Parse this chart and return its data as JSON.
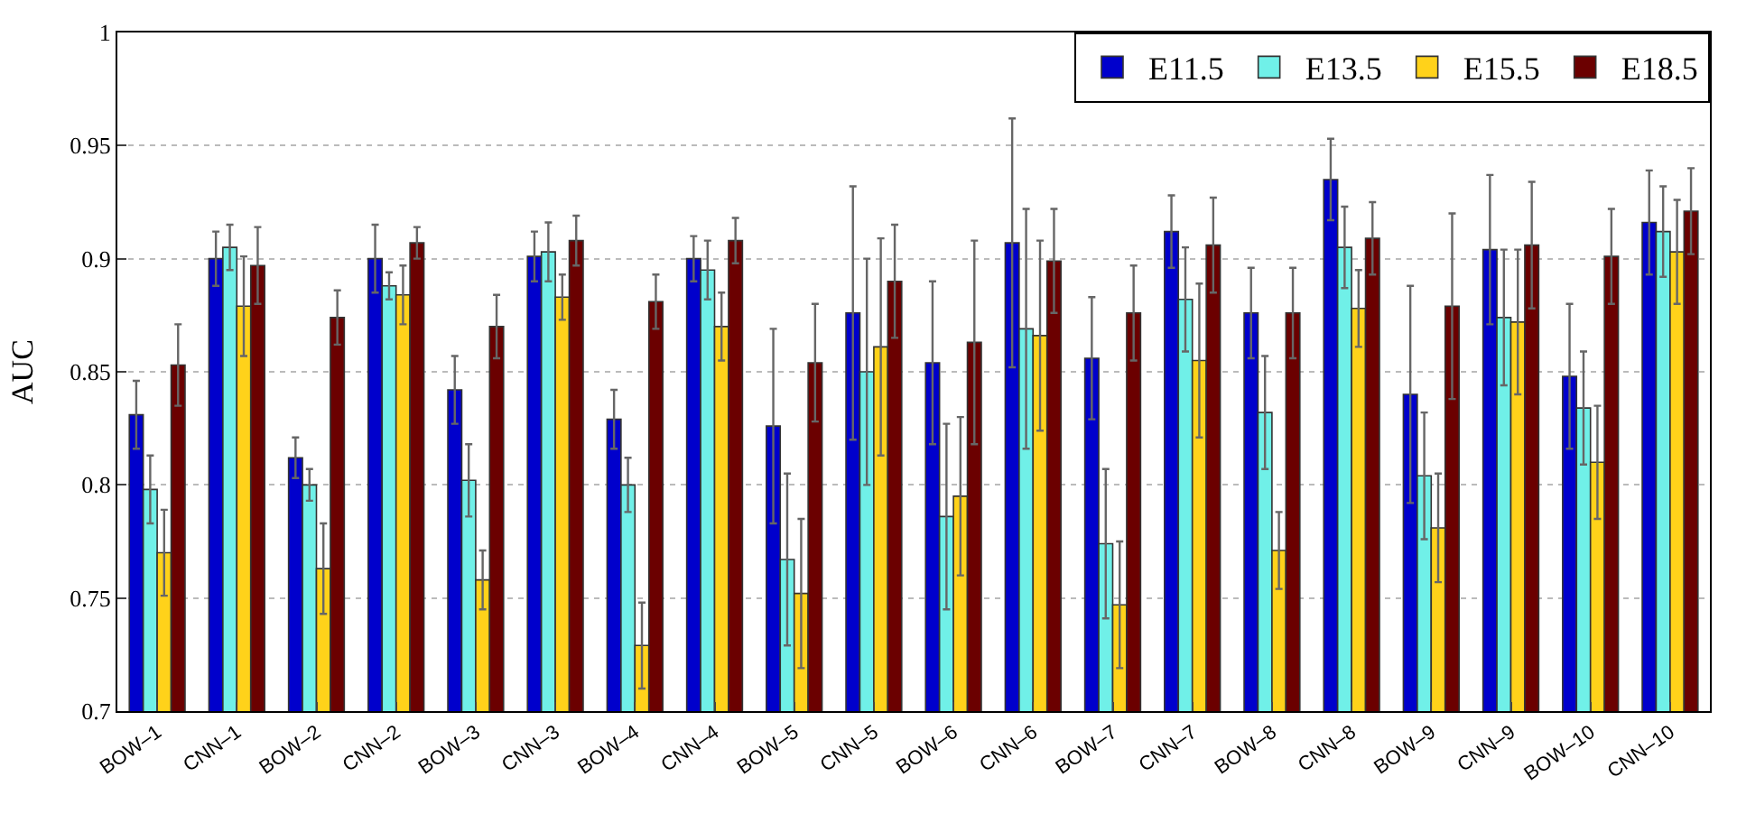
{
  "chart_data": {
    "type": "bar",
    "ylabel": "AUC",
    "categories": [
      "BOW–1",
      "CNN–1",
      "BOW–2",
      "CNN–2",
      "BOW–3",
      "CNN–3",
      "BOW–4",
      "CNN–4",
      "BOW–5",
      "CNN–5",
      "BOW–6",
      "CNN–6",
      "BOW–7",
      "CNN–7",
      "BOW–8",
      "CNN–8",
      "BOW–9",
      "CNN–9",
      "BOW–10",
      "CNN–10"
    ],
    "series": [
      {
        "name": "E11.5",
        "color": "#0000cc",
        "values": [
          0.831,
          0.9,
          0.812,
          0.9,
          0.842,
          0.901,
          0.829,
          0.9,
          0.826,
          0.876,
          0.854,
          0.907,
          0.856,
          0.912,
          0.876,
          0.935,
          0.84,
          0.904,
          0.848,
          0.916
        ],
        "errors": [
          0.015,
          0.012,
          0.009,
          0.015,
          0.015,
          0.011,
          0.013,
          0.01,
          0.043,
          0.056,
          0.036,
          0.055,
          0.027,
          0.016,
          0.02,
          0.018,
          0.048,
          0.033,
          0.032,
          0.023
        ]
      },
      {
        "name": "E13.5",
        "color": "#70f0e8",
        "values": [
          0.798,
          0.905,
          0.8,
          0.888,
          0.802,
          0.903,
          0.8,
          0.895,
          0.767,
          0.85,
          0.786,
          0.869,
          0.774,
          0.882,
          0.832,
          0.905,
          0.804,
          0.874,
          0.834,
          0.912
        ],
        "errors": [
          0.015,
          0.01,
          0.007,
          0.006,
          0.016,
          0.013,
          0.012,
          0.013,
          0.038,
          0.05,
          0.041,
          0.053,
          0.033,
          0.023,
          0.025,
          0.018,
          0.028,
          0.03,
          0.025,
          0.02
        ]
      },
      {
        "name": "E15.5",
        "color": "#ffd21a",
        "values": [
          0.77,
          0.879,
          0.763,
          0.884,
          0.758,
          0.883,
          0.729,
          0.87,
          0.752,
          0.861,
          0.795,
          0.866,
          0.747,
          0.855,
          0.771,
          0.878,
          0.781,
          0.872,
          0.81,
          0.903
        ],
        "errors": [
          0.019,
          0.022,
          0.02,
          0.013,
          0.013,
          0.01,
          0.019,
          0.015,
          0.033,
          0.048,
          0.035,
          0.042,
          0.028,
          0.034,
          0.017,
          0.017,
          0.024,
          0.032,
          0.025,
          0.023
        ]
      },
      {
        "name": "E18.5",
        "color": "#6b0000",
        "values": [
          0.853,
          0.897,
          0.874,
          0.907,
          0.87,
          0.908,
          0.881,
          0.908,
          0.854,
          0.89,
          0.863,
          0.899,
          0.876,
          0.906,
          0.876,
          0.909,
          0.879,
          0.906,
          0.901,
          0.921
        ],
        "errors": [
          0.018,
          0.017,
          0.012,
          0.007,
          0.014,
          0.011,
          0.012,
          0.01,
          0.026,
          0.025,
          0.045,
          0.023,
          0.021,
          0.021,
          0.02,
          0.016,
          0.041,
          0.028,
          0.021,
          0.019
        ]
      }
    ],
    "ylim": [
      0.7,
      1
    ],
    "yticks": [
      0.7,
      0.75,
      0.8,
      0.85,
      0.9,
      0.95,
      1
    ],
    "grid": "y",
    "legend": "top right"
  }
}
